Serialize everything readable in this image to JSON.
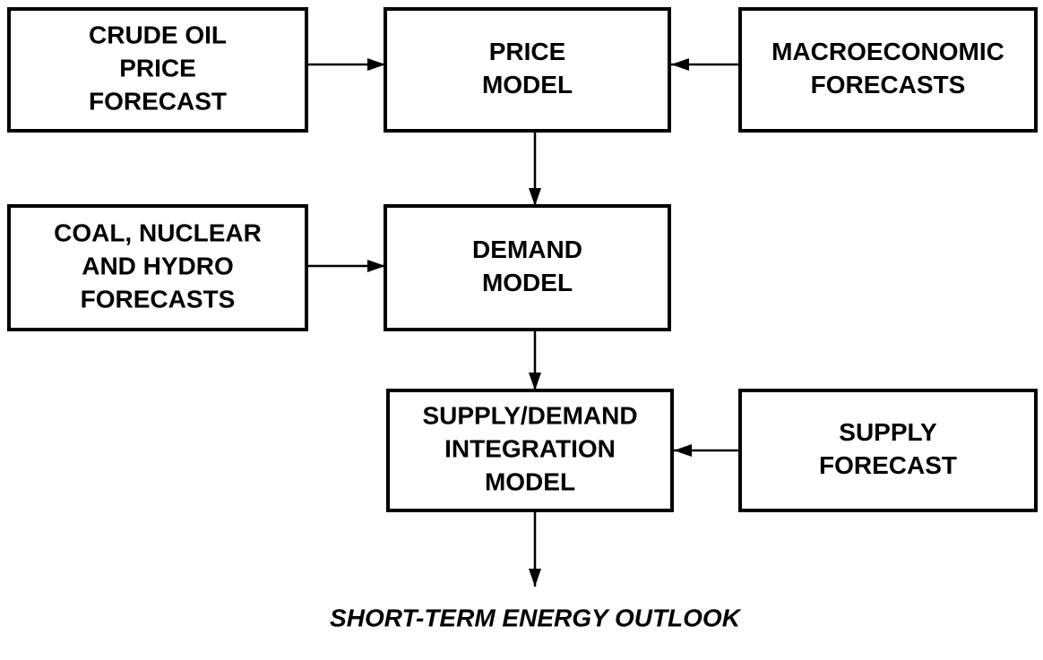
{
  "nodes": [
    {
      "lines": [
        "CRUDE OIL",
        "PRICE",
        "FORECAST"
      ]
    },
    {
      "lines": [
        "PRICE",
        "MODEL"
      ]
    },
    {
      "lines": [
        "MACROECONOMIC",
        "FORECASTS"
      ]
    },
    {
      "lines": [
        "COAL, NUCLEAR",
        "AND HYDRO",
        "FORECASTS"
      ]
    },
    {
      "lines": [
        "DEMAND",
        "MODEL"
      ]
    },
    {
      "lines": [
        "SUPPLY/DEMAND",
        "INTEGRATION",
        "MODEL"
      ]
    },
    {
      "lines": [
        "SUPPLY",
        "FORECAST"
      ]
    }
  ],
  "output": "SHORT-TERM ENERGY OUTLOOK"
}
